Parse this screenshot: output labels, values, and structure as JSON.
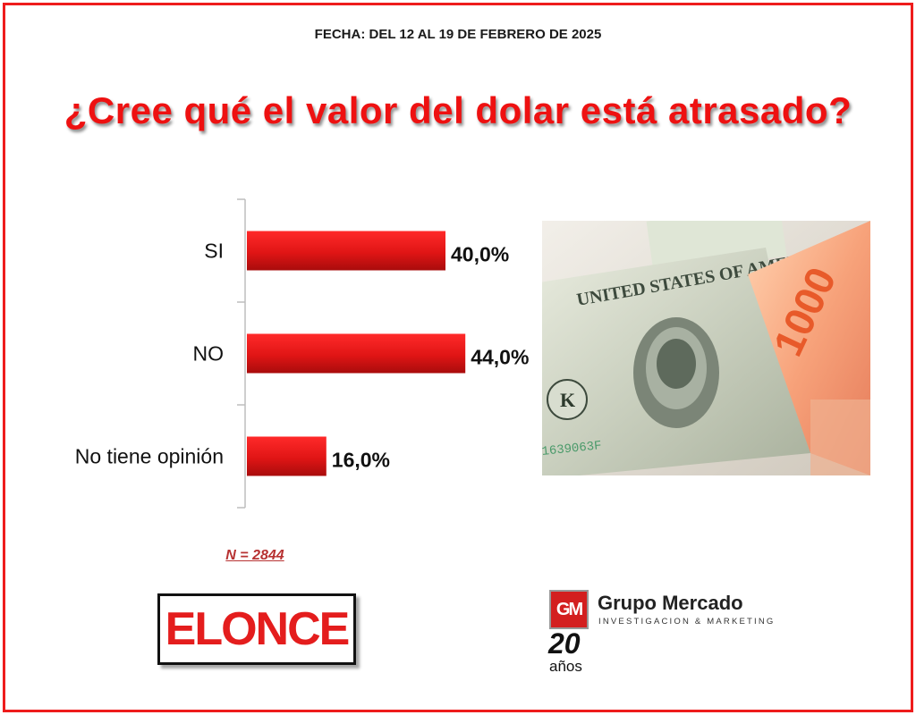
{
  "header": {
    "date": "FECHA: DEL 12 AL 19 DE FEBRERO DE 2025",
    "title": "¿Cree qué el valor del dolar está atrasado?"
  },
  "colors": {
    "frame": "#ee1c1c",
    "bar": "#e01515",
    "title": "#ee1111"
  },
  "chart_data": {
    "type": "bar",
    "orientation": "horizontal",
    "categories": [
      "SI",
      "NO",
      "No tiene opinión"
    ],
    "values": [
      40.0,
      44.0,
      16.0
    ],
    "data_labels": [
      "40,0%",
      "44,0%",
      "16,0%"
    ],
    "title": "¿Cree qué el valor del dolar está atrasado?",
    "xlim": [
      0,
      50
    ],
    "grid": false,
    "legend": "none"
  },
  "sample": {
    "label": "N = 2844"
  },
  "photo": {
    "icon": "banknotes-photo",
    "note_value": "1000"
  },
  "logos": {
    "elonce": "ELONCE",
    "gm_mark": "GM",
    "gm_name": "Grupo Mercado",
    "gm_sub": "INVESTIGACION & MARKETING",
    "gm_years": "20",
    "gm_anos": "años"
  }
}
